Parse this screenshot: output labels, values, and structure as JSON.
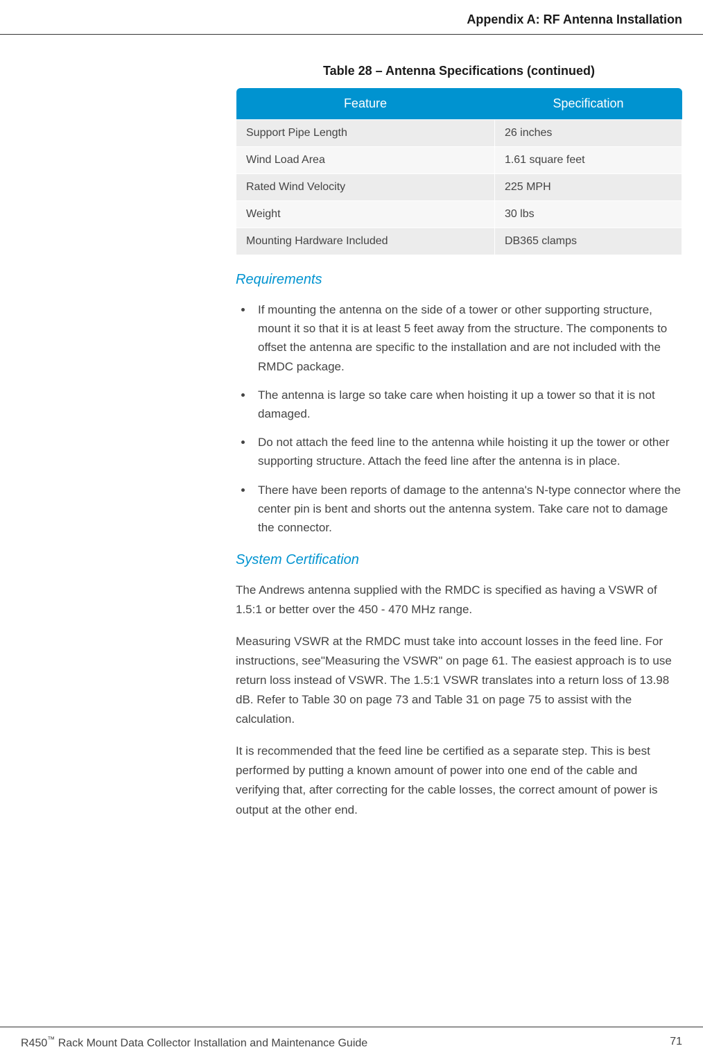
{
  "header": {
    "title": "Appendix A: RF Antenna Installation"
  },
  "table": {
    "caption": "Table 28  –  Antenna Specifications (continued)",
    "columns": [
      "Feature",
      "Specification"
    ],
    "header_bg": "#0093d0",
    "header_fg": "#ffffff",
    "row_odd_bg": "#ececec",
    "row_even_bg": "#f7f7f7",
    "rows": [
      [
        "Support Pipe Length",
        "26 inches"
      ],
      [
        "Wind Load Area",
        "1.61 square feet"
      ],
      [
        "Rated Wind Velocity",
        "225 MPH"
      ],
      [
        "Weight",
        "30 lbs"
      ],
      [
        "Mounting Hardware Included",
        "DB365 clamps"
      ]
    ]
  },
  "requirements": {
    "heading": "Requirements",
    "heading_color": "#0093d0",
    "items": [
      "If mounting the antenna on the side of a tower or other supporting structure, mount it so that it is at least 5 feet away from the structure. The components to offset the antenna are specific to the installation and are not included with the RMDC package.",
      "The antenna is large so take care when hoisting it up a tower so that it is not damaged.",
      "Do not attach the feed line to the antenna while hoisting it up the tower or other supporting structure. Attach the feed line after the antenna is in place.",
      "There have been reports of damage to the antenna's N-type connector where the center pin is bent and shorts out the antenna system. Take care not to damage the connector."
    ]
  },
  "certification": {
    "heading": "System Certification",
    "paragraphs": [
      "The Andrews antenna supplied with the RMDC is specified as having a VSWR of 1.5:1 or better over the 450 - 470 MHz range.",
      "Measuring VSWR at the RMDC must take into account losses in the feed line. For instructions, see\"Measuring the VSWR\" on page 61. The easiest approach is to use return loss instead of VSWR. The 1.5:1 VSWR translates into a return loss of 13.98 dB. Refer to Table 30 on page 73 and Table 31 on page 75 to assist with the calculation.",
      "It is recommended that the feed line be certified as a separate step. This is best performed by putting a known amount of power into one end of the cable and verifying that, after correcting for the cable losses, the correct amount of power is output at the other end."
    ]
  },
  "footer": {
    "product": "R450",
    "tm": "™",
    "doc_title": " Rack Mount Data Collector Installation and Maintenance Guide",
    "page_number": "71"
  }
}
